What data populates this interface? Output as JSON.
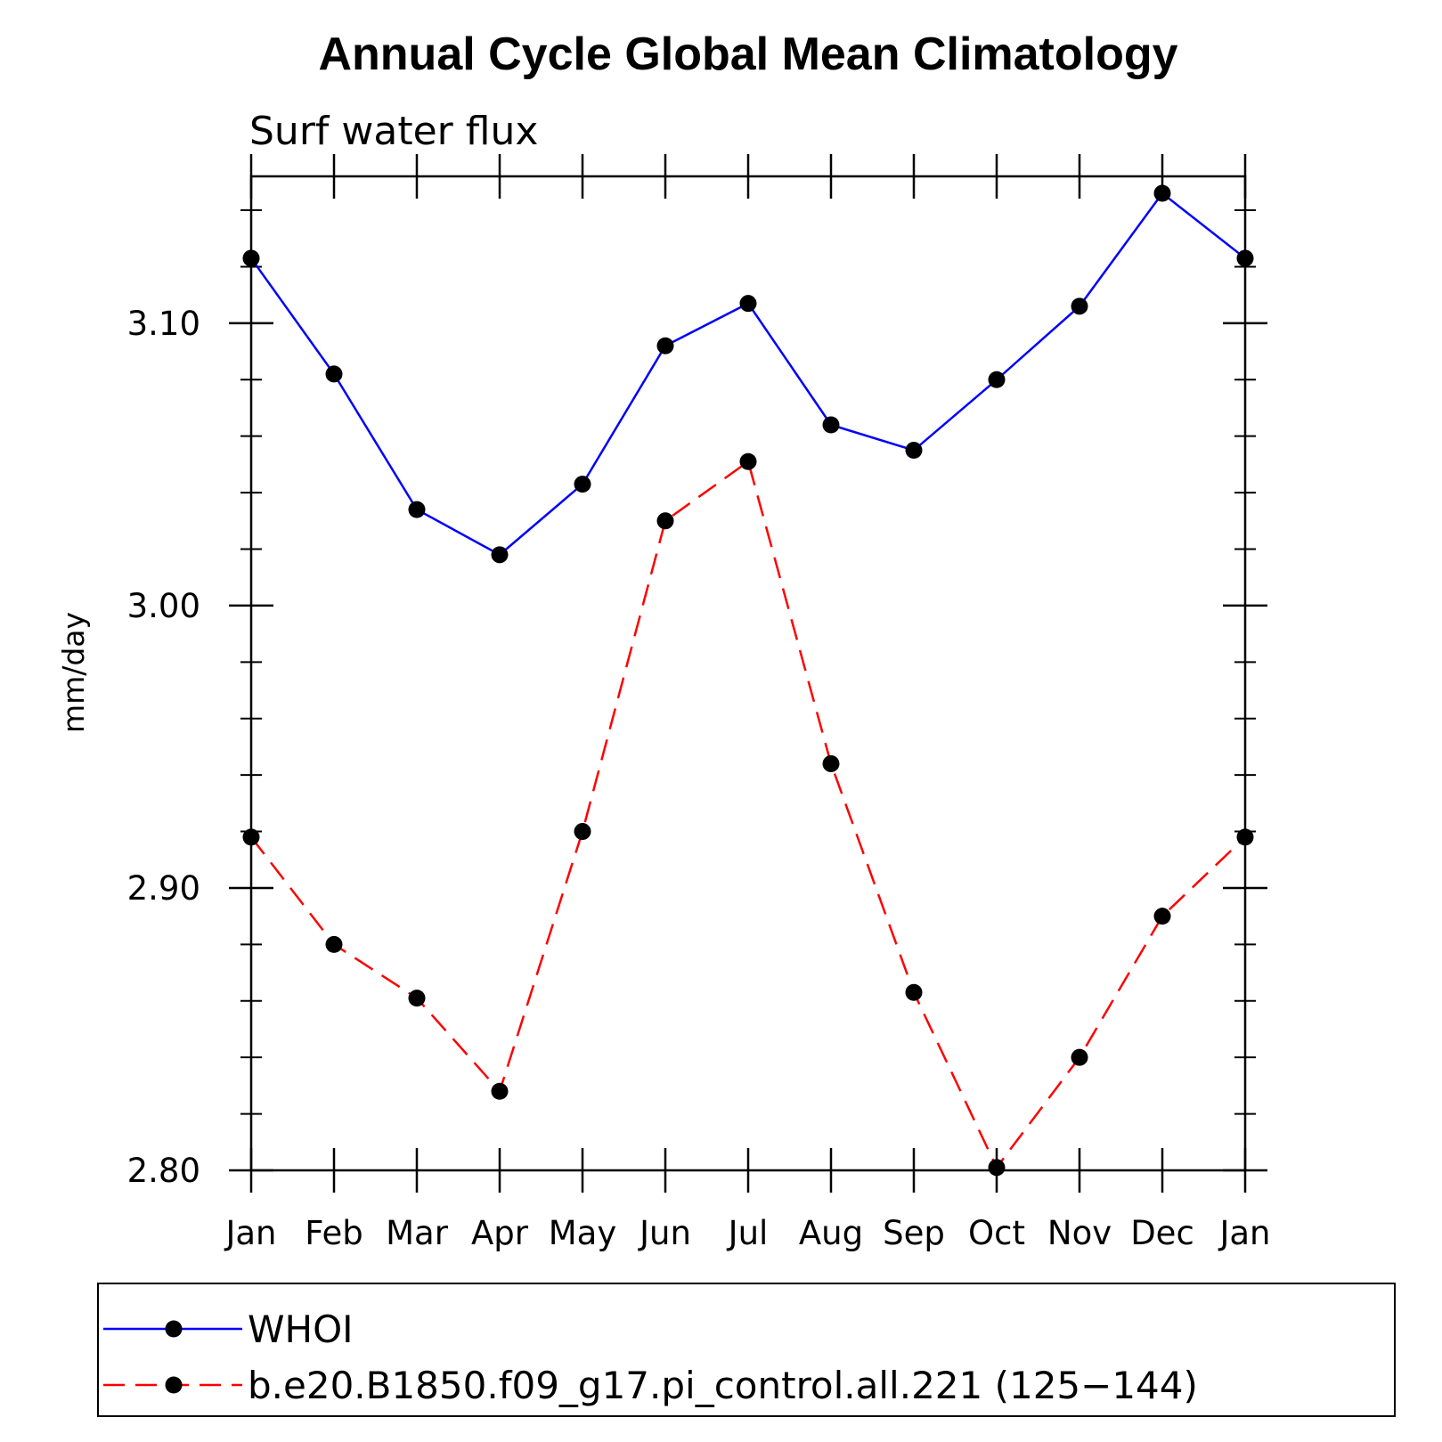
{
  "chart_data": {
    "type": "line",
    "title": "Annual Cycle Global Mean Climatology",
    "subtitle": "Surf water flux",
    "xlabel": "",
    "ylabel": "mm/day",
    "categories": [
      "Jan",
      "Feb",
      "Mar",
      "Apr",
      "May",
      "Jun",
      "Jul",
      "Aug",
      "Sep",
      "Oct",
      "Nov",
      "Dec",
      "Jan"
    ],
    "ylim": [
      2.8,
      3.152
    ],
    "yticks": [
      "2.80",
      "2.90",
      "3.00",
      "3.10"
    ],
    "ytick_values": [
      2.8,
      2.9,
      3.0,
      3.1
    ],
    "series": [
      {
        "name": "WHOI",
        "color": "#0000ff",
        "dash": "solid",
        "values": [
          3.123,
          3.082,
          3.034,
          3.018,
          3.043,
          3.092,
          3.107,
          3.064,
          3.055,
          3.08,
          3.106,
          3.146,
          3.123
        ]
      },
      {
        "name": "b.e20.B1850.f09_g17.pi_control.all.221 (125−144)",
        "color": "#ff0000",
        "dash": "dashed",
        "values": [
          2.918,
          2.88,
          2.861,
          2.828,
          2.92,
          3.03,
          3.051,
          2.944,
          2.863,
          2.801,
          2.84,
          2.89,
          2.918
        ]
      }
    ],
    "marker_color": "#000000",
    "legend_position": "bottom"
  }
}
